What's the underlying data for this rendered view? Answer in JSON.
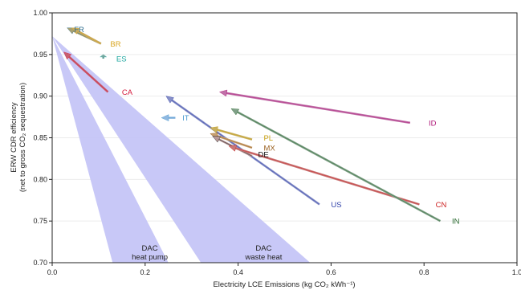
{
  "chart_data": {
    "type": "scatter",
    "xlabel": "Electricity LCE Emissions (kg CO₂ kWh⁻¹)",
    "ylabel_line1": "ERW CDR efficiency",
    "ylabel_line2": "(net to gross CO₂ sequestration)",
    "xlim": [
      0.0,
      1.0
    ],
    "ylim": [
      0.7,
      1.0
    ],
    "x_ticks": [
      {
        "value": 0.0,
        "label": "0.0"
      },
      {
        "value": 0.2,
        "label": "0.2"
      },
      {
        "value": 0.4,
        "label": "0.4"
      },
      {
        "value": 0.6,
        "label": "0.6"
      },
      {
        "value": 0.8,
        "label": "0.8"
      },
      {
        "value": 1.0,
        "label": "1.0"
      }
    ],
    "y_ticks": [
      {
        "value": 0.7,
        "label": "0.70"
      },
      {
        "value": 0.75,
        "label": "0.75"
      },
      {
        "value": 0.8,
        "label": "0.80"
      },
      {
        "value": 0.85,
        "label": "0.85"
      },
      {
        "value": 0.9,
        "label": "0.90"
      },
      {
        "value": 0.95,
        "label": "0.95"
      },
      {
        "value": 1.0,
        "label": "1.00"
      }
    ],
    "grid": true,
    "band_color": "#c5c5f7",
    "bands": [
      {
        "label_line1": "DAC",
        "label_line2": "heat pump",
        "apex": [
          0.0,
          0.972
        ],
        "bottom_x": [
          0.13,
          0.25
        ],
        "label_at": [
          0.21,
          0.705
        ]
      },
      {
        "label_line1": "DAC",
        "label_line2": "waste heat",
        "apex": [
          0.0,
          0.972
        ],
        "bottom_x": [
          0.32,
          0.555
        ],
        "label_at": [
          0.455,
          0.705
        ]
      }
    ],
    "countries": [
      {
        "label": "FR",
        "color": "#2f6e8e",
        "arrow_color": "#a8a070",
        "from": [
          0.105,
          0.963
        ],
        "to": [
          0.032,
          0.982
        ],
        "label_at": [
          0.047,
          0.98
        ]
      },
      {
        "label": "BR",
        "color": "#d9a520",
        "arrow_color": "#c8aa60",
        "from": [
          0.105,
          0.963
        ],
        "to": [
          0.042,
          0.982
        ],
        "label_at": [
          0.125,
          0.963
        ]
      },
      {
        "label": "ES",
        "color": "#20a8a0",
        "arrow_color": "#88a8a0",
        "from": [
          0.11,
          0.945
        ],
        "to": [
          0.11,
          0.95
        ],
        "label_at": [
          0.138,
          0.945
        ]
      },
      {
        "label": "CA",
        "color": "#d4193c",
        "arrow_color": "#c86070",
        "from": [
          0.12,
          0.905
        ],
        "to": [
          0.025,
          0.953
        ],
        "label_at": [
          0.15,
          0.905
        ]
      },
      {
        "label": "IT",
        "color": "#4a9ad0",
        "arrow_color": "#90b8e0",
        "from": [
          0.265,
          0.874
        ],
        "to": [
          0.235,
          0.874
        ],
        "label_at": [
          0.28,
          0.874
        ]
      },
      {
        "label": "US",
        "color": "#2d3fa8",
        "arrow_color": "#8890c8",
        "from": [
          0.575,
          0.77
        ],
        "to": [
          0.245,
          0.9
        ],
        "label_at": [
          0.6,
          0.77
        ]
      },
      {
        "label": "PL",
        "color": "#c8a010",
        "arrow_color": "#c8b060",
        "from": [
          0.43,
          0.848
        ],
        "to": [
          0.34,
          0.862
        ],
        "label_at": [
          0.455,
          0.85
        ]
      },
      {
        "label": "MX",
        "color": "#9a6020",
        "arrow_color": "#c8a070",
        "from": [
          0.43,
          0.838
        ],
        "to": [
          0.34,
          0.855
        ],
        "label_at": [
          0.455,
          0.838
        ]
      },
      {
        "label": "DE",
        "color": "#111111",
        "arrow_color": "#b89898",
        "from": [
          0.43,
          0.828
        ],
        "to": [
          0.345,
          0.852
        ],
        "label_at": [
          0.443,
          0.83
        ]
      },
      {
        "label": "ID",
        "color": "#b0197a",
        "arrow_color": "#c070a8",
        "from": [
          0.77,
          0.868
        ],
        "to": [
          0.36,
          0.905
        ],
        "label_at": [
          0.81,
          0.868
        ]
      },
      {
        "label": "CN",
        "color": "#cc2020",
        "arrow_color": "#c87878",
        "from": [
          0.79,
          0.77
        ],
        "to": [
          0.38,
          0.84
        ],
        "label_at": [
          0.825,
          0.77
        ]
      },
      {
        "label": "IN",
        "color": "#2a6a30",
        "arrow_color": "#80a088",
        "from": [
          0.835,
          0.75
        ],
        "to": [
          0.385,
          0.885
        ],
        "label_at": [
          0.86,
          0.75
        ]
      }
    ]
  }
}
